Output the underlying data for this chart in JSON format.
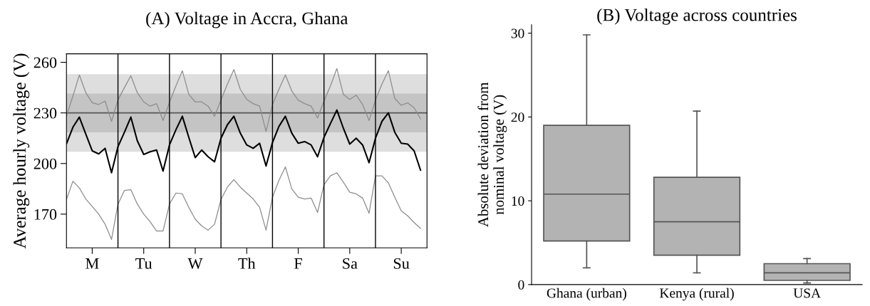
{
  "chart_data": [
    {
      "type": "line",
      "title": "(A) Voltage in Accra, Ghana",
      "ylabel": "Average hourly voltage (V)",
      "categories": [
        null,
        null,
        null,
        null,
        "M",
        null,
        null,
        null,
        null,
        null,
        null,
        null,
        "Tu",
        null,
        null,
        null,
        null,
        null,
        null,
        null,
        "W",
        null,
        null,
        null,
        null,
        null,
        null,
        null,
        "Th",
        null,
        null,
        null,
        null,
        null,
        null,
        null,
        "F",
        null,
        null,
        null,
        null,
        null,
        null,
        null,
        "Sa",
        null,
        null,
        null,
        null,
        null,
        null,
        null,
        "Su",
        null,
        null,
        null
      ],
      "ylim": [
        150,
        265
      ],
      "yticks": [
        170,
        200,
        230,
        260
      ],
      "bands": [
        {
          "axis": "y",
          "from": 207,
          "to": 253,
          "color": "#dedede"
        },
        {
          "axis": "y",
          "from": 218.5,
          "to": 241.5,
          "color": "#c4c4c4"
        }
      ],
      "ref_lines": [
        {
          "axis": "y",
          "value": 230,
          "color": "#555555"
        }
      ],
      "line_style": "solid",
      "marker": "none",
      "grid": "x",
      "series": [
        {
          "color": "#8c8c8c",
          "values": [
            228,
            240,
            252.5,
            242,
            236,
            235,
            237,
            225,
            237.7,
            245,
            252,
            242,
            236.5,
            234,
            235.5,
            225.5,
            236.3,
            246,
            255,
            241,
            236.5,
            236.5,
            234,
            228,
            237.7,
            247,
            255.7,
            244,
            238,
            235.5,
            234,
            219,
            234.9,
            244,
            252.5,
            243,
            237.5,
            235.5,
            234,
            227,
            237,
            246,
            256.3,
            241,
            238,
            240.5,
            235,
            225.5,
            237.5,
            247,
            255,
            238.5,
            234.5,
            236,
            233,
            226.5
          ]
        },
        {
          "color": "#8c8c8c",
          "values": [
            178.7,
            189.5,
            185.5,
            179,
            174.5,
            170,
            164,
            155,
            175.9,
            184,
            184.5,
            176,
            170,
            165.5,
            160,
            160,
            175.9,
            182.5,
            182,
            174,
            167,
            163,
            160.5,
            164,
            178.7,
            186,
            190.5,
            186,
            182.5,
            179,
            174,
            160.5,
            180,
            190,
            198,
            185,
            180,
            179,
            179.5,
            171,
            187.5,
            192.7,
            194.5,
            189,
            183,
            182,
            179.5,
            170.5,
            192.7,
            192.7,
            188.5,
            180,
            172,
            169,
            165,
            161.5
          ]
        },
        {
          "color": "#000000",
          "values": [
            211.7,
            221.5,
            227.5,
            217.5,
            207.5,
            205.7,
            209,
            194.5,
            210,
            218.5,
            227.5,
            213.5,
            205.4,
            207,
            208,
            195.5,
            211,
            220,
            228,
            215.5,
            203.5,
            208,
            204,
            201,
            215,
            223,
            228,
            218,
            211,
            209,
            212,
            198.5,
            212.4,
            222,
            228,
            218,
            212,
            213,
            211,
            204,
            215.5,
            223.7,
            231.7,
            221,
            211.5,
            215,
            211,
            200.5,
            215,
            225,
            230,
            218.5,
            212,
            211.5,
            207.5,
            196
          ]
        }
      ]
    },
    {
      "type": "box",
      "title": "(B) Voltage across countries",
      "ylabel": "Absolute deviation from\nnominal voltage (V)",
      "categories": [
        "Ghana (urban)",
        "Kenya (rural)",
        "USA"
      ],
      "ylim": [
        0,
        31
      ],
      "yticks": [
        0,
        10,
        20,
        30
      ],
      "boxes": [
        {
          "low": 2.0,
          "q1": 5.2,
          "median": 10.8,
          "q3": 19.0,
          "high": 29.8
        },
        {
          "low": 1.4,
          "q1": 3.5,
          "median": 7.5,
          "q3": 12.8,
          "high": 20.7
        },
        {
          "low": 0.2,
          "q1": 0.5,
          "median": 1.4,
          "q3": 2.5,
          "high": 3.1
        }
      ],
      "color": "#b3b3b3"
    }
  ]
}
